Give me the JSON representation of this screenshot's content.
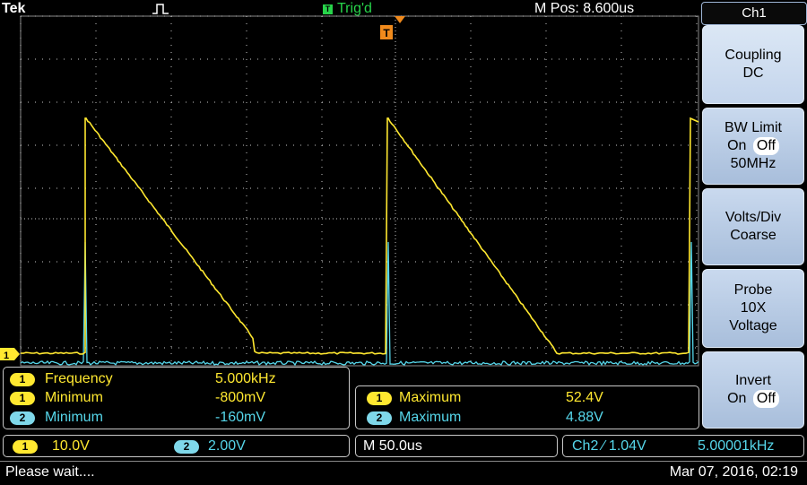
{
  "topbar": {
    "brand": "Tek",
    "trigger_status": "Trig'd",
    "trigger_badge": "T",
    "m_pos": "M Pos: 8.600us"
  },
  "display": {
    "trigger_marker": "T",
    "ch1_ground_marker": "1"
  },
  "side_menu": {
    "title": "Ch1",
    "items": [
      {
        "line1": "Coupling",
        "line2": "DC"
      },
      {
        "line1": "BW Limit",
        "on": "On",
        "off": "Off",
        "line3": "50MHz"
      },
      {
        "line1": "Volts/Div",
        "line2": "Coarse"
      },
      {
        "line1": "Probe",
        "line2": "10X",
        "line3": "Voltage"
      },
      {
        "line1": "Invert",
        "on": "On",
        "off": "Off"
      }
    ]
  },
  "measurements": {
    "left": [
      {
        "ch": "1",
        "label": "Frequency",
        "value": "5.000kHz"
      },
      {
        "ch": "1",
        "label": "Minimum",
        "value": "-800mV"
      },
      {
        "ch": "2",
        "label": "Minimum",
        "value": "-160mV"
      }
    ],
    "right": [
      {
        "ch": "1",
        "label": "Maximum",
        "value": "52.4V"
      },
      {
        "ch": "2",
        "label": "Maximum",
        "value": "4.88V"
      }
    ]
  },
  "channels": {
    "ch1": {
      "num": "1",
      "scale": "10.0V"
    },
    "ch2": {
      "num": "2",
      "scale": "2.00V"
    },
    "timebase": "M 50.0us",
    "trigger_readout": "Ch2 ∕ 1.04V",
    "trigger_freq": "5.00001kHz"
  },
  "status": {
    "message": "Please wait....",
    "datetime": "Mar 07, 2016, 02:19"
  },
  "colors": {
    "ch1": "#ffe830",
    "ch2": "#56d6ea",
    "trig_ok": "#27d34a",
    "trigger_marker": "#f08a1c"
  }
}
